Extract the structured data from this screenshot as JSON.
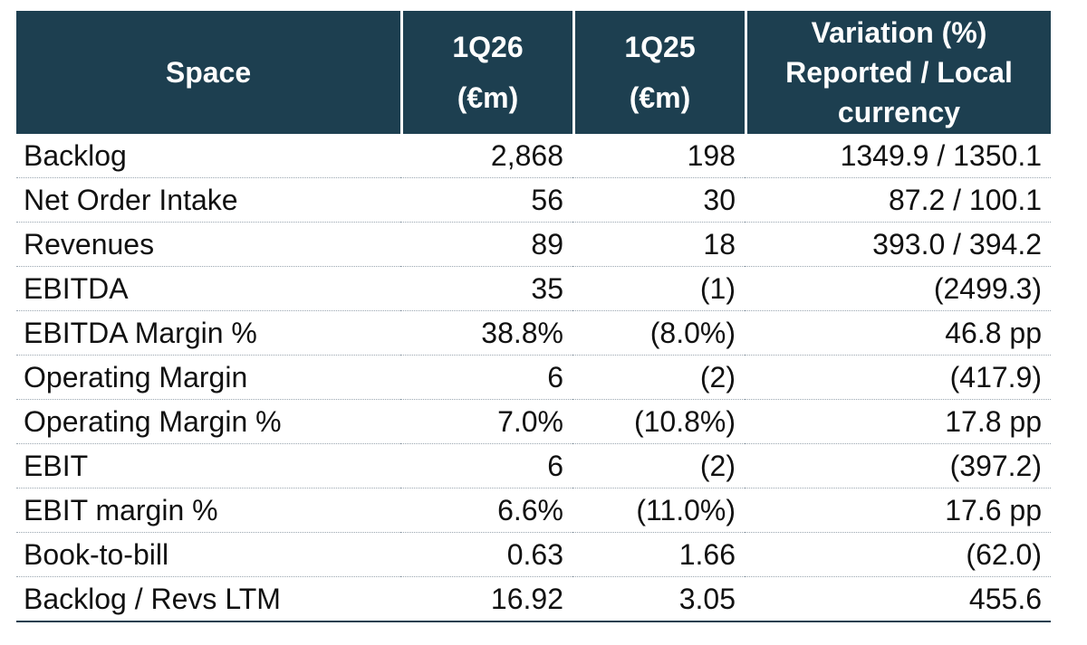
{
  "header": {
    "col0": "Space",
    "col1_line1": "1Q26",
    "col1_line2": "(€m)",
    "col2_line1": "1Q25",
    "col2_line2": "(€m)",
    "col3_line1": "Variation (%)",
    "col3_line2": "Reported / Local",
    "col3_line3": "currency"
  },
  "colors": {
    "header_bg": "#1d3f50",
    "header_text": "#ffffff",
    "body_text": "#111111"
  },
  "rows": [
    {
      "label": "Backlog",
      "q126": "2,868",
      "q125": "198",
      "variation": "1349.9 / 1350.1"
    },
    {
      "label": "Net Order Intake",
      "q126": "56",
      "q125": "30",
      "variation": "87.2 / 100.1"
    },
    {
      "label": "Revenues",
      "q126": "89",
      "q125": "18",
      "variation": "393.0 / 394.2"
    },
    {
      "label": "EBITDA",
      "q126": "35",
      "q125": "(1)",
      "variation": "(2499.3)"
    },
    {
      "label": "EBITDA Margin %",
      "q126": "38.8%",
      "q125": "(8.0%)",
      "variation": "46.8 pp"
    },
    {
      "label": "Operating Margin",
      "q126": "6",
      "q125": "(2)",
      "variation": "(417.9)"
    },
    {
      "label": "Operating Margin %",
      "q126": "7.0%",
      "q125": "(10.8%)",
      "variation": "17.8 pp"
    },
    {
      "label": "EBIT",
      "q126": "6",
      "q125": "(2)",
      "variation": "(397.2)"
    },
    {
      "label": "EBIT margin %",
      "q126": "6.6%",
      "q125": "(11.0%)",
      "variation": "17.6 pp"
    },
    {
      "label": "Book-to-bill",
      "q126": "0.63",
      "q125": "1.66",
      "variation": "(62.0)"
    },
    {
      "label": "Backlog / Revs LTM",
      "q126": "16.92",
      "q125": "3.05",
      "variation": "455.6"
    }
  ]
}
